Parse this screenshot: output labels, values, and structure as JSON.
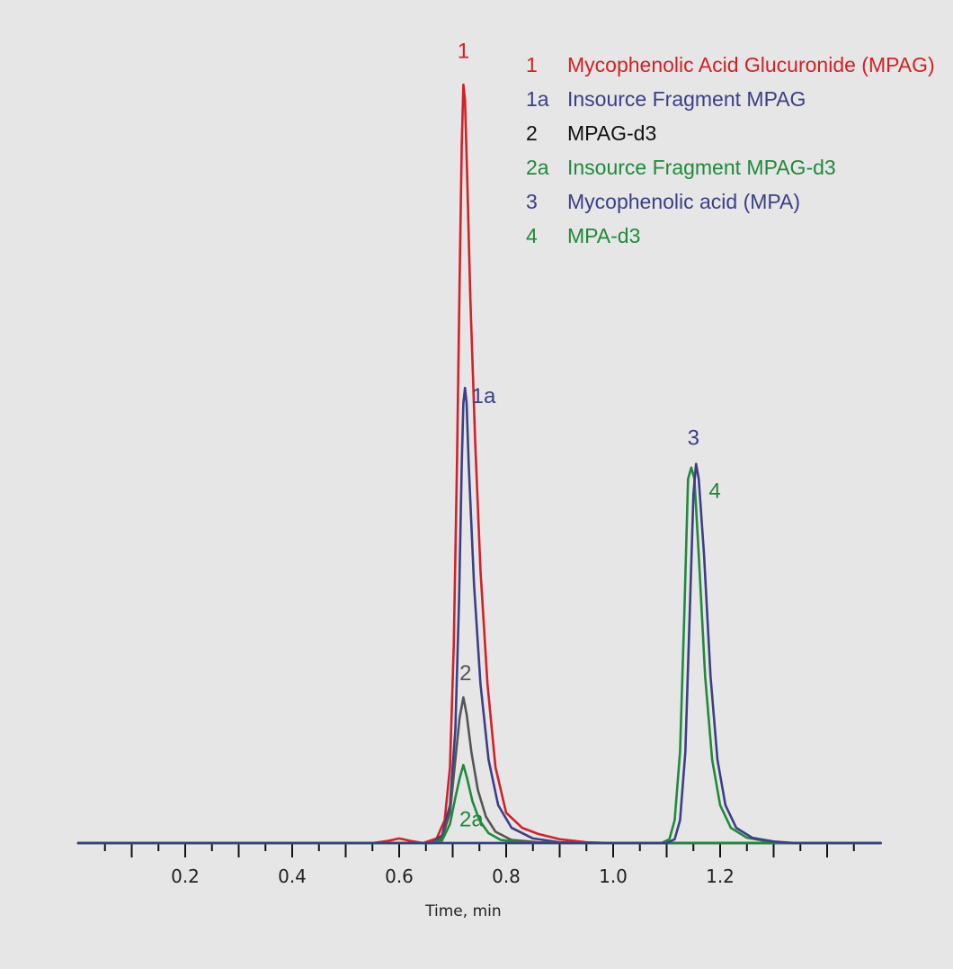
{
  "chart_data": {
    "type": "line",
    "xlabel": "Time, min",
    "ylabel": "",
    "xlim": [
      0.0,
      1.5
    ],
    "x_ticks": [
      "0.2",
      "0.4",
      "0.6",
      "0.8",
      "1.0",
      "1.2"
    ],
    "x_tick_values": [
      0.2,
      0.4,
      0.6,
      0.8,
      1.0,
      1.2
    ],
    "ylim": [
      0,
      100
    ],
    "grid": false,
    "legend_position": "top-right",
    "legend": [
      {
        "id": "1",
        "name": "Mycophenolic Acid Glucuronide (MPAG)",
        "color": "#d42027"
      },
      {
        "id": "1a",
        "name": "Insource Fragment MPAG",
        "color": "#3a3f86"
      },
      {
        "id": "2",
        "name": "MPAG-d3",
        "color": "#111111"
      },
      {
        "id": "2a",
        "name": "Insource Fragment MPAG-d3",
        "color": "#1f8a3b"
      },
      {
        "id": "3",
        "name": "Mycophenolic acid (MPA)",
        "color": "#3a3f86"
      },
      {
        "id": "4",
        "name": "MPA-d3",
        "color": "#1f8a3b"
      }
    ],
    "series": [
      {
        "id": "1",
        "color": "#d42027",
        "label_color": "#d42027",
        "x": [
          0.0,
          0.55,
          0.58,
          0.6,
          0.62,
          0.645,
          0.67,
          0.685,
          0.695,
          0.702,
          0.708,
          0.713,
          0.717,
          0.72,
          0.723,
          0.727,
          0.733,
          0.742,
          0.752,
          0.765,
          0.78,
          0.8,
          0.83,
          0.86,
          0.9,
          0.95,
          1.0,
          1.5
        ],
        "y": [
          0.0,
          0.0,
          0.3,
          0.6,
          0.3,
          0.0,
          0.6,
          3,
          10,
          26,
          50,
          74,
          92,
          100,
          98,
          88,
          72,
          53,
          36,
          21,
          10,
          4,
          2,
          1.2,
          0.5,
          0.1,
          0.0,
          0.0
        ]
      },
      {
        "id": "1a",
        "color": "#3a3f86",
        "label_color": "#3a3f86",
        "x": [
          0.0,
          0.66,
          0.68,
          0.695,
          0.705,
          0.712,
          0.717,
          0.72,
          0.723,
          0.726,
          0.73,
          0.74,
          0.752,
          0.767,
          0.785,
          0.81,
          0.85,
          0.9,
          0.95,
          1.5
        ],
        "y": [
          0.0,
          0.0,
          1,
          5,
          15,
          32,
          50,
          58,
          60,
          58,
          50,
          34,
          21,
          11,
          5,
          2,
          0.6,
          0.1,
          0.0,
          0.0
        ]
      },
      {
        "id": "2",
        "color": "#555555",
        "label_color": "#555555",
        "x": [
          0.0,
          0.66,
          0.68,
          0.695,
          0.705,
          0.713,
          0.72,
          0.726,
          0.735,
          0.747,
          0.762,
          0.78,
          0.81,
          0.86,
          0.92,
          1.5
        ],
        "y": [
          0.0,
          0.0,
          0.6,
          4,
          11,
          16.5,
          19.2,
          17,
          12,
          7,
          3.5,
          1.5,
          0.4,
          0.1,
          0.0,
          0.0
        ]
      },
      {
        "id": "2a",
        "color": "#1f8a3b",
        "label_color": "#1f8a3b",
        "x": [
          0.0,
          0.66,
          0.68,
          0.695,
          0.705,
          0.713,
          0.72,
          0.727,
          0.737,
          0.75,
          0.767,
          0.79,
          0.83,
          0.9,
          1.5
        ],
        "y": [
          0.0,
          0.0,
          0.3,
          2.5,
          6,
          8.5,
          10.3,
          8.5,
          5.5,
          3,
          1.3,
          0.4,
          0.1,
          0.0,
          0.0
        ]
      },
      {
        "id": "4",
        "color": "#1f8a3b",
        "label_color": "#1f8a3b",
        "x": [
          0.0,
          1.09,
          1.105,
          1.115,
          1.125,
          1.133,
          1.14,
          1.146,
          1.152,
          1.16,
          1.172,
          1.185,
          1.2,
          1.22,
          1.25,
          1.29,
          1.33,
          1.5
        ],
        "y": [
          0.0,
          0.0,
          0.5,
          3,
          12,
          30,
          48,
          49.5,
          48,
          38,
          22,
          11,
          5,
          2,
          0.7,
          0.2,
          0.0,
          0.0
        ]
      },
      {
        "id": "3",
        "color": "#3a3f86",
        "label_color": "#3a3f86",
        "x": [
          0.0,
          1.1,
          1.115,
          1.125,
          1.135,
          1.143,
          1.15,
          1.155,
          1.16,
          1.17,
          1.182,
          1.195,
          1.21,
          1.23,
          1.26,
          1.3,
          1.34,
          1.5
        ],
        "y": [
          0.0,
          0.0,
          0.5,
          3,
          12,
          30,
          46,
          50,
          48,
          38,
          22,
          11,
          5,
          2,
          0.7,
          0.2,
          0.0,
          0.0
        ]
      }
    ],
    "peak_labels": [
      {
        "text": "1",
        "x": 0.72,
        "y": 103.5,
        "color": "#d42027"
      },
      {
        "text": "1a",
        "x": 0.758,
        "y": 58,
        "color": "#3a3f86"
      },
      {
        "text": "2",
        "x": 0.724,
        "y": 21.5,
        "color": "#555555"
      },
      {
        "text": "2a",
        "x": 0.735,
        "y": 2.2,
        "color": "#1f8a3b"
      },
      {
        "text": "3",
        "x": 1.15,
        "y": 52.5,
        "color": "#3a3f86"
      },
      {
        "text": "4",
        "x": 1.19,
        "y": 45.5,
        "color": "#1f8a3b"
      }
    ]
  }
}
